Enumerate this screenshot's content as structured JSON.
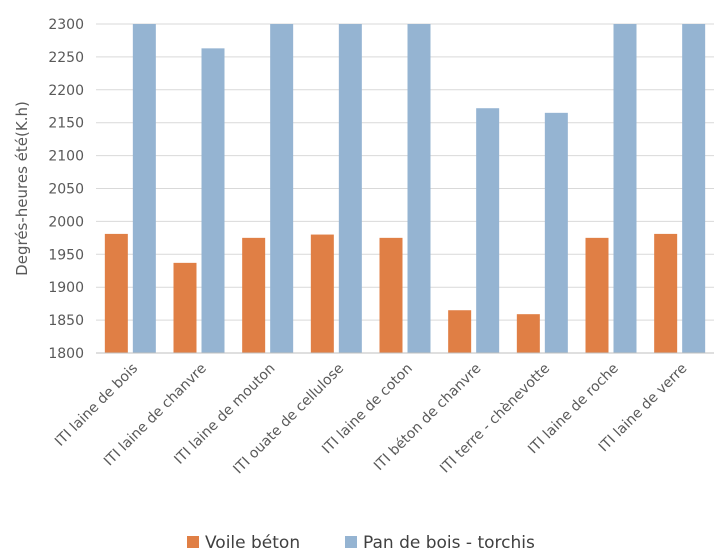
{
  "chart_data": {
    "type": "bar",
    "title": "",
    "xlabel": "",
    "ylabel": "Degrés-heures été(K.h)",
    "ylim": [
      1800,
      2300
    ],
    "yticks": [
      1800,
      1850,
      1900,
      1950,
      2000,
      2050,
      2100,
      2150,
      2200,
      2250,
      2300
    ],
    "categories": [
      "ITI laine de bois",
      "ITI laine de chanvre",
      "ITI laine de mouton",
      "ITI ouate de cellulose",
      "ITI laine de coton",
      "ITI béton de chanvre",
      "ITI terre - chènevotte",
      "ITI laine de roche",
      "ITI laine de verre"
    ],
    "series": [
      {
        "name": "Voile béton",
        "color": "#e07f45",
        "values": [
          1981,
          1937,
          1975,
          1980,
          1975,
          1865,
          1859,
          1975,
          1981
        ]
      },
      {
        "name": "Pan de bois - torchis",
        "color": "#95b4d2",
        "values": [
          2300,
          2263,
          2300,
          2300,
          2300,
          2172,
          2165,
          2300,
          2300
        ]
      }
    ],
    "grid": true,
    "legend_position": "bottom"
  }
}
